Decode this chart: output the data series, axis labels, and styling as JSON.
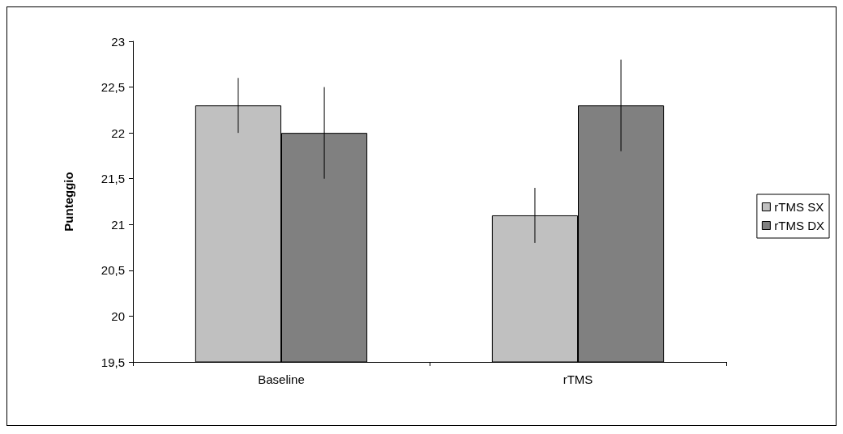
{
  "chart_data": {
    "type": "bar",
    "ylabel": "Punteggio",
    "categories": [
      "Baseline",
      "rTMS"
    ],
    "series": [
      {
        "name": "rTMS SX",
        "color": "#c0c0c0",
        "values": [
          22.3,
          21.1
        ],
        "errors": [
          0.3,
          0.3
        ]
      },
      {
        "name": "rTMS DX",
        "color": "#808080",
        "values": [
          22.0,
          22.3
        ],
        "errors": [
          0.5,
          0.5
        ]
      }
    ],
    "ylim": [
      19.5,
      23
    ],
    "yticks": [
      {
        "value": 19.5,
        "label": "19,5"
      },
      {
        "value": 20,
        "label": "20"
      },
      {
        "value": 20.5,
        "label": "20,5"
      },
      {
        "value": 21,
        "label": "21"
      },
      {
        "value": 21.5,
        "label": "21,5"
      },
      {
        "value": 22,
        "label": "22"
      },
      {
        "value": 22.5,
        "label": "22,5"
      },
      {
        "value": 23,
        "label": "23"
      }
    ],
    "grid": false,
    "legend": "right"
  }
}
